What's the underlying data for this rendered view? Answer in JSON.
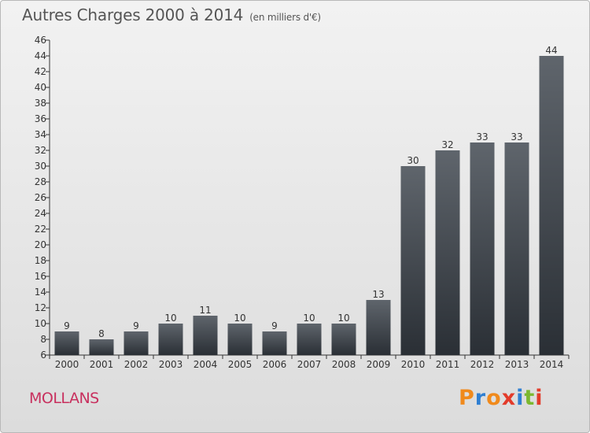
{
  "title": "Autres Charges 2000 à 2014",
  "unit_label": "(en milliers d'€)",
  "place": "MOLLANS",
  "logo": {
    "letters": [
      "P",
      "r",
      "o",
      "x",
      "i",
      "t",
      "i"
    ],
    "colors": [
      "#f08a1c",
      "#2f7fd2",
      "#f08a1c",
      "#e33b2a",
      "#2f7fd2",
      "#7cb82f",
      "#e33b2a"
    ]
  },
  "chart_data": {
    "type": "bar",
    "title": "Autres Charges 2000 à 2014",
    "categories": [
      "2000",
      "2001",
      "2002",
      "2003",
      "2004",
      "2005",
      "2006",
      "2007",
      "2008",
      "2009",
      "2010",
      "2011",
      "2012",
      "2013",
      "2014"
    ],
    "values": [
      9,
      8,
      9,
      10,
      11,
      10,
      9,
      10,
      10,
      13,
      30,
      32,
      33,
      33,
      44
    ],
    "ylim": [
      6,
      46
    ],
    "yticks": [
      6,
      8,
      10,
      12,
      14,
      16,
      18,
      20,
      22,
      24,
      26,
      28,
      30,
      32,
      34,
      36,
      38,
      40,
      42,
      44,
      46
    ],
    "grid": false,
    "bar_color_top": "#5f656c",
    "bar_color_bottom": "#2a2f35"
  }
}
